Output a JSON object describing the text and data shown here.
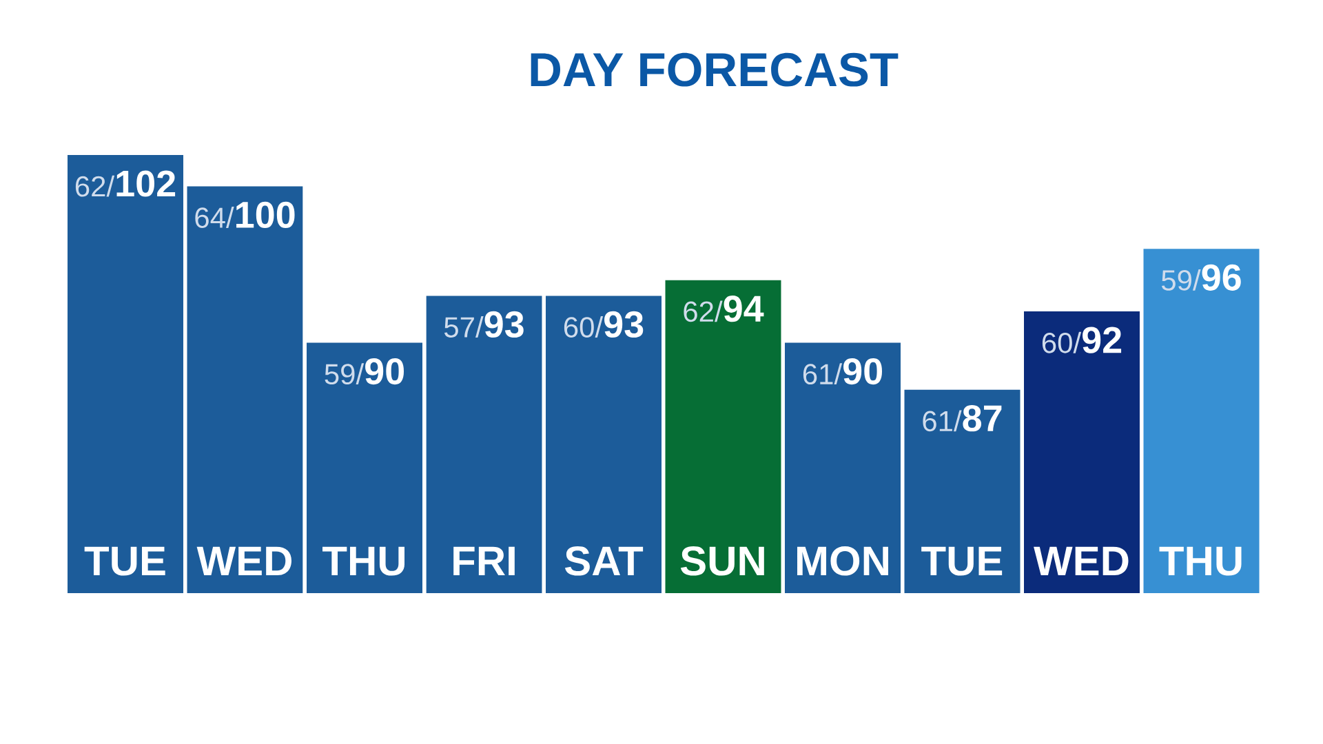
{
  "chart_data": {
    "type": "bar",
    "title": "DAY FORECAST",
    "categories": [
      "TUE",
      "WED",
      "THU",
      "FRI",
      "SAT",
      "SUN",
      "MON",
      "TUE",
      "WED",
      "THU"
    ],
    "values": [
      102,
      100,
      90,
      93,
      93,
      94,
      90,
      87,
      92,
      96
    ],
    "value_labels": [
      "62/**102**",
      "64/**100**",
      "59/**90**",
      "57/**93**",
      "60/**93**",
      "62/**94**",
      "61/**90**",
      "61/**87**",
      "60/**92**",
      "59/**96**"
    ],
    "colors": [
      "#1c5c9a",
      "#1c5c9a",
      "#1c5c9a",
      "#1c5c9a",
      "#1c5c9a",
      "#066e35",
      "#1c5c9a",
      "#1c5c9a",
      "#0b2b7b",
      "#3790d3"
    ],
    "ylim": [
      74,
      102
    ],
    "tick_labels": "x"
  }
}
